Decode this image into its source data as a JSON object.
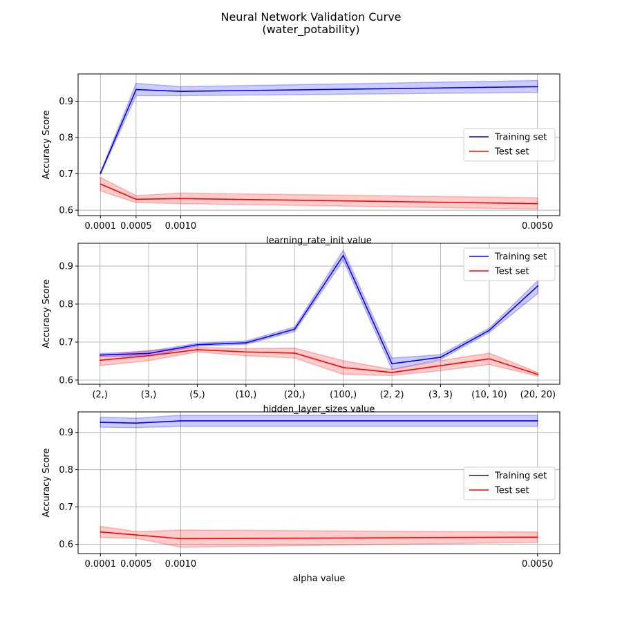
{
  "figure": {
    "title_line1": "Neural Network Validation Curve",
    "title_line2": "(water_potability)"
  },
  "legend_labels": {
    "train": "Training set",
    "test": "Test set"
  },
  "colors": {
    "train": "#0000ff",
    "test": "#ff0000",
    "train_band": "#0000ff",
    "test_band": "#ff0000",
    "grid": "#b0b0b0",
    "frame": "#000000"
  },
  "chart_data": [
    {
      "type": "line",
      "xlabel": "learning_rate_init value",
      "ylabel": "Accuracy Score",
      "x": [
        0.0001,
        0.0005,
        0.001,
        0.005
      ],
      "x_tick_labels": [
        "0.0001",
        "0.0005",
        "0.0010",
        "0.0050"
      ],
      "x_scale": "linear",
      "xlim": [
        -0.00015,
        0.00525
      ],
      "ylim": [
        0.585,
        0.975
      ],
      "y_ticks": [
        0.6,
        0.7,
        0.8,
        0.9
      ],
      "y_tick_labels": [
        "0.6",
        "0.7",
        "0.8",
        "0.9"
      ],
      "grid": true,
      "legend_placement": "center-right",
      "series": [
        {
          "name": "Training set",
          "key": "train",
          "values": [
            0.701,
            0.932,
            0.927,
            0.94
          ],
          "lower": [
            0.698,
            0.915,
            0.915,
            0.924
          ],
          "upper": [
            0.704,
            0.949,
            0.94,
            0.957
          ]
        },
        {
          "name": "Test set",
          "key": "test",
          "values": [
            0.672,
            0.63,
            0.632,
            0.618
          ],
          "lower": [
            0.653,
            0.621,
            0.618,
            0.603
          ],
          "upper": [
            0.69,
            0.64,
            0.647,
            0.634
          ]
        }
      ]
    },
    {
      "type": "line",
      "xlabel": "hidden_layer_sizes value",
      "ylabel": "Accuracy Score",
      "categories": [
        "(2,)",
        "(3,)",
        "(5,)",
        "(10,)",
        "(20,)",
        "(100,)",
        "(2, 2)",
        "(3, 3)",
        "(10, 10)",
        "(20, 20)"
      ],
      "x_scale": "categorical",
      "ylim": [
        0.589,
        0.96
      ],
      "y_ticks": [
        0.6,
        0.7,
        0.8,
        0.9
      ],
      "y_tick_labels": [
        "0.6",
        "0.7",
        "0.8",
        "0.9"
      ],
      "grid": true,
      "legend_placement": "upper-right",
      "series": [
        {
          "name": "Training set",
          "key": "train",
          "values": [
            0.666,
            0.67,
            0.693,
            0.698,
            0.734,
            0.928,
            0.643,
            0.66,
            0.731,
            0.848
          ],
          "lower": [
            0.662,
            0.664,
            0.689,
            0.694,
            0.728,
            0.915,
            0.628,
            0.654,
            0.725,
            0.828
          ],
          "upper": [
            0.67,
            0.676,
            0.697,
            0.703,
            0.74,
            0.942,
            0.658,
            0.667,
            0.737,
            0.862
          ]
        },
        {
          "name": "Test set",
          "key": "test",
          "values": [
            0.652,
            0.664,
            0.68,
            0.674,
            0.671,
            0.633,
            0.62,
            0.638,
            0.656,
            0.615
          ],
          "lower": [
            0.638,
            0.651,
            0.674,
            0.664,
            0.658,
            0.615,
            0.612,
            0.625,
            0.641,
            0.61
          ],
          "upper": [
            0.665,
            0.678,
            0.686,
            0.683,
            0.684,
            0.651,
            0.628,
            0.651,
            0.671,
            0.62
          ]
        }
      ]
    },
    {
      "type": "line",
      "xlabel": "alpha value",
      "ylabel": "Accuracy Score",
      "x": [
        0.0001,
        0.0005,
        0.001,
        0.005
      ],
      "x_tick_labels": [
        "0.0001",
        "0.0005",
        "0.0010",
        "0.0050"
      ],
      "x_scale": "linear",
      "xlim": [
        -0.00015,
        0.00525
      ],
      "ylim": [
        0.575,
        0.955
      ],
      "y_ticks": [
        0.6,
        0.7,
        0.8,
        0.9
      ],
      "y_tick_labels": [
        "0.6",
        "0.7",
        "0.8",
        "0.9"
      ],
      "grid": true,
      "legend_placement": "center-right",
      "series": [
        {
          "name": "Training set",
          "key": "train",
          "values": [
            0.927,
            0.925,
            0.931,
            0.931
          ],
          "lower": [
            0.914,
            0.913,
            0.916,
            0.916
          ],
          "upper": [
            0.941,
            0.938,
            0.946,
            0.946
          ]
        },
        {
          "name": "Test set",
          "key": "test",
          "values": [
            0.633,
            0.625,
            0.615,
            0.619
          ],
          "lower": [
            0.618,
            0.616,
            0.592,
            0.605
          ],
          "upper": [
            0.648,
            0.634,
            0.638,
            0.633
          ]
        }
      ]
    }
  ]
}
